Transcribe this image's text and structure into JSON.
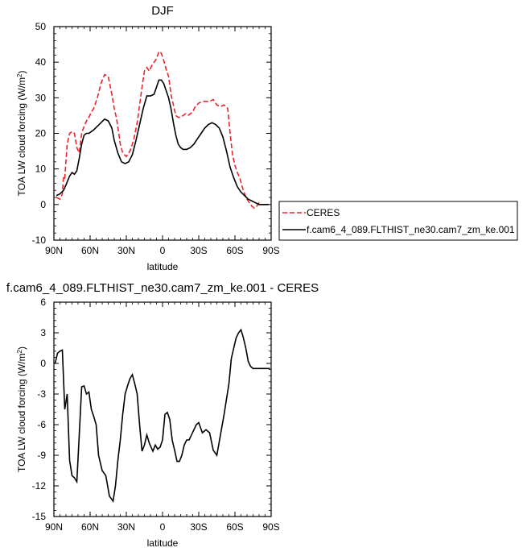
{
  "chart_data": [
    {
      "type": "line",
      "title": "DJF",
      "xlabel": "latitude",
      "ylabel": "TOA LW cloud forcing (W/m",
      "ylabel_sup": "2",
      "ylabel_close": ")",
      "ylim": [
        -10,
        50
      ],
      "xlim": [
        90,
        -90
      ],
      "x_ticks": [
        90,
        60,
        30,
        0,
        -30,
        -60,
        -90
      ],
      "x_tick_labels": [
        "90N",
        "60N",
        "30N",
        "0",
        "30S",
        "60S",
        "90S"
      ],
      "y_ticks": [
        -10,
        0,
        10,
        20,
        30,
        40,
        50
      ],
      "y_tick_labels": [
        "-10",
        "0",
        "10",
        "20",
        "30",
        "40",
        "50"
      ],
      "legend_position": "right",
      "series": [
        {
          "name": "CERES",
          "color": "#e8262b",
          "dashed": true,
          "x": [
            88,
            85,
            83,
            82,
            81,
            79,
            77,
            75,
            73,
            71,
            69,
            67,
            65,
            63,
            61,
            59,
            57,
            54,
            51,
            48,
            45,
            42,
            40,
            38,
            35,
            33,
            30,
            27,
            24,
            21,
            19,
            17,
            15,
            13,
            11,
            9,
            7,
            5,
            3,
            1,
            -1,
            -3,
            -5,
            -7,
            -9,
            -11,
            -13,
            -15,
            -17,
            -19,
            -21,
            -23,
            -25,
            -27,
            -30,
            -33,
            -36,
            -39,
            -42,
            -45,
            -48,
            -51,
            -54,
            -56,
            -58,
            -60,
            -62,
            -64,
            -66,
            -68,
            -70,
            -72,
            -74,
            -76,
            -78,
            -80,
            -82,
            -84,
            -86,
            -88
          ],
          "values": [
            2,
            1.5,
            3,
            8,
            7.5,
            17,
            20,
            20.5,
            20,
            16,
            14.5,
            20,
            22,
            23.5,
            24.5,
            26,
            27,
            30,
            34,
            36.5,
            36,
            31,
            27,
            24,
            17,
            14.5,
            13.5,
            15,
            18,
            23,
            28,
            33,
            37.5,
            38.5,
            37.5,
            39,
            40,
            41,
            43,
            42.5,
            40.5,
            38,
            36,
            31,
            28,
            25,
            24.5,
            24.5,
            25,
            25.5,
            25,
            25.5,
            26,
            27.5,
            28.5,
            29,
            29,
            29,
            29.5,
            28,
            27.5,
            28,
            27,
            20,
            14,
            11,
            9,
            7.5,
            5,
            3,
            1.5,
            0.5,
            -0.5,
            -1,
            -0.5,
            0.5,
            0,
            0,
            0,
            0
          ]
        },
        {
          "name": "f.cam6_4_089.FLTHIST_ne30.cam7_zm_ke.001",
          "color": "#000000",
          "dashed": false,
          "x": [
            88,
            85,
            82,
            80,
            77,
            75,
            73,
            71,
            69,
            67,
            65,
            63,
            61,
            59,
            57,
            54,
            51,
            48,
            45,
            42,
            40,
            37,
            34,
            31,
            28,
            25,
            22,
            19,
            16,
            13,
            10,
            7,
            5,
            3,
            1,
            -1,
            -3,
            -5,
            -7,
            -9,
            -11,
            -13,
            -15,
            -17,
            -20,
            -23,
            -26,
            -29,
            -32,
            -35,
            -38,
            -41,
            -44,
            -47,
            -50,
            -53,
            -56,
            -59,
            -62,
            -65,
            -68,
            -71,
            -74,
            -77,
            -80,
            -82,
            -84,
            -86,
            -88
          ],
          "values": [
            2.5,
            3,
            4,
            5.5,
            8,
            9,
            8.5,
            9.5,
            13,
            17,
            19.5,
            20,
            20,
            20.5,
            21,
            22,
            23,
            24,
            23.5,
            21.5,
            18,
            14.5,
            12,
            11.5,
            12,
            14,
            18,
            22.5,
            27,
            30.5,
            30.5,
            31,
            33,
            35,
            35,
            34,
            32,
            30,
            27,
            23,
            19.5,
            17,
            16,
            15.5,
            15.5,
            16,
            17,
            18.5,
            20,
            21.5,
            22.5,
            23,
            22.5,
            21.5,
            19,
            15,
            10.5,
            7.5,
            5,
            3.5,
            2.5,
            1.5,
            1,
            0.5,
            0,
            0,
            0,
            0,
            0
          ]
        }
      ]
    },
    {
      "type": "line",
      "title": "f.cam6_4_089.FLTHIST_ne30.cam7_zm_ke.001 - CERES",
      "xlabel": "latitude",
      "ylabel": "TOA LW cloud forcing (W/m",
      "ylabel_sup": "2",
      "ylabel_close": ")",
      "ylim": [
        -15,
        6
      ],
      "xlim": [
        90,
        -90
      ],
      "x_ticks": [
        90,
        60,
        30,
        0,
        -30,
        -60,
        -90
      ],
      "x_tick_labels": [
        "90N",
        "60N",
        "30N",
        "0",
        "30S",
        "60S",
        "90S"
      ],
      "y_ticks": [
        -15,
        -12,
        -9,
        -6,
        -3,
        0,
        3,
        6
      ],
      "y_tick_labels": [
        "-15",
        "-12",
        "-9",
        "-6",
        "-3",
        "0",
        "3",
        "6"
      ],
      "series": [
        {
          "color": "#000000",
          "dashed": false,
          "x": [
            89,
            87,
            85,
            83,
            81,
            79,
            77,
            75,
            73,
            71,
            69,
            67,
            65,
            63,
            61,
            59,
            57,
            55,
            53,
            50,
            47,
            44,
            41,
            39,
            37,
            35,
            33,
            31,
            29,
            27,
            25,
            23,
            21,
            19,
            17,
            15,
            13,
            11,
            8,
            6,
            4,
            2,
            0,
            -2,
            -4,
            -6,
            -8,
            -10,
            -12,
            -14,
            -16,
            -18,
            -20,
            -22,
            -24,
            -26,
            -28,
            -30,
            -33,
            -36,
            -39,
            -42,
            -45,
            -48,
            -51,
            -53,
            -55,
            -57,
            -59,
            -61,
            -63,
            -65,
            -67,
            -69,
            -71,
            -73,
            -75,
            -77,
            -79,
            -81,
            -83,
            -85,
            -87,
            -89
          ],
          "values": [
            0,
            1,
            1.2,
            1.3,
            -4.5,
            -3,
            -9.5,
            -11,
            -11.2,
            -11.6,
            -7,
            -2.3,
            -2.2,
            -3,
            -2.8,
            -4.5,
            -5.2,
            -6,
            -9,
            -10.5,
            -11,
            -13,
            -13.5,
            -12,
            -9.5,
            -7.5,
            -5,
            -3,
            -2.2,
            -1.5,
            -1.1,
            -2,
            -3,
            -6,
            -8.6,
            -8,
            -7,
            -7.8,
            -8.6,
            -8,
            -8.4,
            -8.2,
            -7.5,
            -5,
            -4.8,
            -5.5,
            -7.5,
            -8.5,
            -9.6,
            -9.6,
            -9,
            -8,
            -7.5,
            -7.5,
            -7,
            -6.5,
            -6,
            -5.8,
            -6.8,
            -6.5,
            -6.8,
            -8.5,
            -9,
            -7,
            -5,
            -3.5,
            -2,
            0.5,
            1.5,
            2.5,
            3,
            3.3,
            2.5,
            1.5,
            0.2,
            -0.3,
            -0.5,
            -0.5,
            -0.5,
            -0.5,
            -0.5,
            -0.5,
            -0.5,
            -0.5
          ]
        }
      ]
    }
  ]
}
